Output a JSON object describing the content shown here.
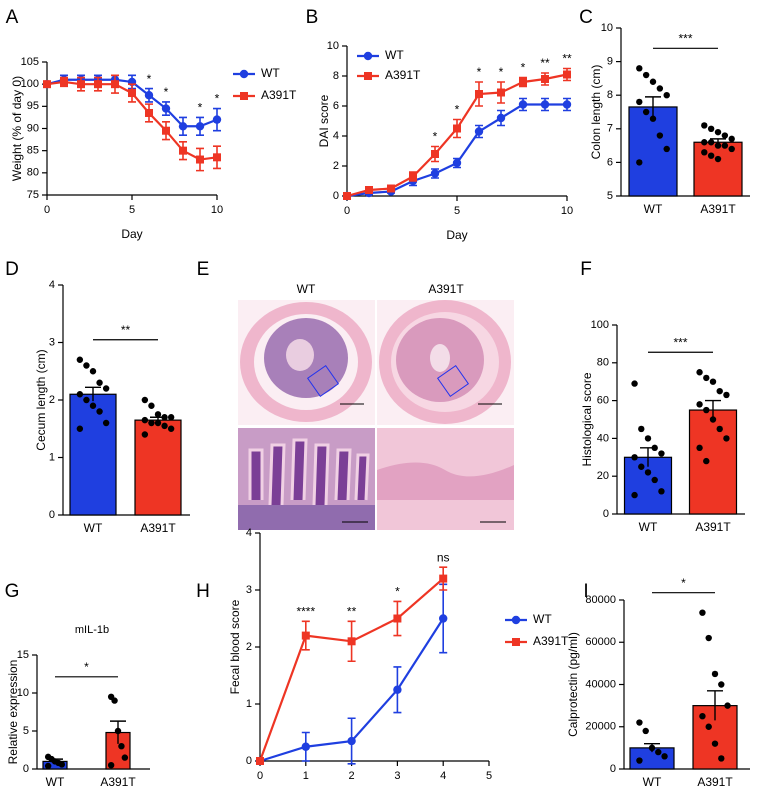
{
  "chart_data": [
    {
      "type": "line",
      "panel": "A",
      "xlabel": "Day",
      "ylabel": "Weight (% of day 0)",
      "x": [
        0,
        1,
        2,
        3,
        4,
        5,
        6,
        7,
        8,
        9,
        10
      ],
      "xlim": [
        0,
        10
      ],
      "xticks": [
        0,
        5,
        10
      ],
      "ylim": [
        75,
        105
      ],
      "yticks": [
        75,
        80,
        85,
        90,
        95,
        100,
        105
      ],
      "legend": "right",
      "series": [
        {
          "name": "WT",
          "color": "#1f3fe0",
          "marker": "circle",
          "values": [
            100,
            101,
            101,
            101,
            101,
            100.5,
            97.5,
            94.5,
            90.5,
            90.5,
            92
          ],
          "errors": [
            0.5,
            1,
            1,
            1,
            1,
            1.5,
            1.5,
            1.5,
            2,
            2,
            2.5
          ]
        },
        {
          "name": "A391T",
          "color": "#ee3524",
          "marker": "square",
          "values": [
            100,
            100.5,
            100,
            100,
            100,
            98,
            93.5,
            89.5,
            85,
            83,
            83.5
          ],
          "errors": [
            0.5,
            1,
            1.5,
            1.5,
            2,
            2,
            2,
            2,
            2,
            2.5,
            2.5
          ]
        }
      ],
      "annotations": [
        {
          "x": 6,
          "text": "*"
        },
        {
          "x": 7,
          "text": "*"
        },
        {
          "x": 9,
          "text": "*"
        },
        {
          "x": 10,
          "text": "*"
        }
      ]
    },
    {
      "type": "line",
      "panel": "B",
      "xlabel": "Day",
      "ylabel": "DAI score",
      "x": [
        0,
        1,
        2,
        3,
        4,
        5,
        6,
        7,
        8,
        9,
        10
      ],
      "xlim": [
        0,
        10
      ],
      "xticks": [
        0,
        5,
        10
      ],
      "ylim": [
        0,
        10
      ],
      "yticks": [
        0,
        2,
        4,
        6,
        8,
        10
      ],
      "legend": "upper left",
      "series": [
        {
          "name": "WT",
          "color": "#1f3fe0",
          "marker": "circle",
          "values": [
            0,
            0.2,
            0.3,
            1.0,
            1.5,
            2.2,
            4.3,
            5.2,
            6.1,
            6.1,
            6.1
          ],
          "errors": [
            0.1,
            0.1,
            0.1,
            0.3,
            0.3,
            0.3,
            0.4,
            0.5,
            0.4,
            0.4,
            0.4
          ]
        },
        {
          "name": "A391T",
          "color": "#ee3524",
          "marker": "square",
          "values": [
            0,
            0.4,
            0.5,
            1.3,
            2.8,
            4.5,
            6.8,
            6.9,
            7.6,
            7.8,
            8.1
          ],
          "errors": [
            0.1,
            0.1,
            0.1,
            0.3,
            0.5,
            0.6,
            0.8,
            0.7,
            0.3,
            0.4,
            0.4
          ]
        }
      ],
      "annotations": [
        {
          "x": 4,
          "text": "*"
        },
        {
          "x": 5,
          "text": "*"
        },
        {
          "x": 6,
          "text": "*"
        },
        {
          "x": 7,
          "text": "*"
        },
        {
          "x": 8,
          "text": "*"
        },
        {
          "x": 9,
          "text": "**"
        },
        {
          "x": 10,
          "text": "**"
        }
      ]
    },
    {
      "type": "bar",
      "panel": "C",
      "ylabel": "Colon length (cm)",
      "categories": [
        "WT",
        "A391T"
      ],
      "values": [
        7.65,
        6.6
      ],
      "errors": [
        0.3,
        0.1
      ],
      "colors": [
        "#1f3fe0",
        "#ee3524"
      ],
      "points": [
        [
          8.8,
          8.6,
          8.4,
          8.2,
          8.0,
          7.8,
          7.5,
          7.3,
          6.8,
          6.4,
          6.0
        ],
        [
          7.1,
          7.0,
          6.9,
          6.8,
          6.7,
          6.6,
          6.6,
          6.5,
          6.5,
          6.4,
          6.3,
          6.2,
          6.1
        ]
      ],
      "ylim": [
        5,
        10
      ],
      "yticks": [
        5,
        6,
        7,
        8,
        9,
        10
      ],
      "significance": "***"
    },
    {
      "type": "bar",
      "panel": "D",
      "ylabel": "Cecum length (cm)",
      "categories": [
        "WT",
        "A391T"
      ],
      "values": [
        2.1,
        1.65
      ],
      "errors": [
        0.12,
        0.05
      ],
      "colors": [
        "#1f3fe0",
        "#ee3524"
      ],
      "points": [
        [
          2.7,
          2.6,
          2.5,
          2.3,
          2.2,
          2.1,
          2.0,
          1.9,
          1.8,
          1.6,
          1.5
        ],
        [
          2.0,
          1.9,
          1.75,
          1.7,
          1.7,
          1.65,
          1.6,
          1.6,
          1.55,
          1.5,
          1.4
        ]
      ],
      "ylim": [
        0,
        4
      ],
      "yticks": [
        0,
        1,
        2,
        3,
        4
      ],
      "significance": "**"
    },
    {
      "type": "image",
      "panel": "E",
      "labels": [
        "WT",
        "A391T"
      ]
    },
    {
      "type": "bar",
      "panel": "F",
      "ylabel": "Histological score",
      "categories": [
        "WT",
        "A391T"
      ],
      "values": [
        30,
        55
      ],
      "errors": [
        5,
        5
      ],
      "colors": [
        "#1f3fe0",
        "#ee3524"
      ],
      "points": [
        [
          69,
          45,
          40,
          35,
          32,
          30,
          25,
          22,
          18,
          12,
          10
        ],
        [
          75,
          72,
          70,
          65,
          63,
          58,
          55,
          50,
          45,
          40,
          35,
          28
        ]
      ],
      "ylim": [
        0,
        100
      ],
      "yticks": [
        0,
        20,
        40,
        60,
        80,
        100
      ],
      "significance": "***"
    },
    {
      "type": "bar",
      "panel": "G",
      "title": "mIL-1b",
      "ylabel": "Relative expression",
      "categories": [
        "WT",
        "A391T"
      ],
      "values": [
        1.0,
        4.8
      ],
      "errors": [
        0.3,
        1.5
      ],
      "colors": [
        "#1f3fe0",
        "#ee3524"
      ],
      "points": [
        [
          1.6,
          1.3,
          1.0,
          0.8,
          0.6,
          0.4
        ],
        [
          9.5,
          9.0,
          5.0,
          3.0,
          1.5,
          0.5
        ]
      ],
      "ylim": [
        0,
        15
      ],
      "yticks": [
        0,
        5,
        10,
        15
      ],
      "significance": "*"
    },
    {
      "type": "line",
      "panel": "H",
      "ylabel": "Fecal blood score",
      "x": [
        0,
        1,
        2,
        3,
        4
      ],
      "xlim": [
        0,
        5
      ],
      "xticks": [
        0,
        1,
        2,
        3,
        4,
        5
      ],
      "ylim": [
        0,
        4
      ],
      "yticks": [
        0,
        1,
        2,
        3,
        4
      ],
      "legend": "right",
      "series": [
        {
          "name": "WT",
          "color": "#1f3fe0",
          "marker": "circle",
          "values": [
            0,
            0.25,
            0.35,
            1.25,
            2.5
          ],
          "errors": [
            0,
            0.25,
            0.4,
            0.4,
            0.6
          ]
        },
        {
          "name": "A391T",
          "color": "#ee3524",
          "marker": "square",
          "values": [
            0,
            2.2,
            2.1,
            2.5,
            3.2
          ],
          "errors": [
            0,
            0.25,
            0.35,
            0.3,
            0.2
          ]
        }
      ],
      "annotations": [
        {
          "x": 1,
          "text": "****"
        },
        {
          "x": 2,
          "text": "**"
        },
        {
          "x": 3,
          "text": "*"
        },
        {
          "x": 4,
          "text": "ns"
        }
      ]
    },
    {
      "type": "bar",
      "panel": "I",
      "ylabel": "Calprotectin (pg/ml)",
      "categories": [
        "WT",
        "A391T"
      ],
      "values": [
        10000,
        30000
      ],
      "errors": [
        2000,
        7000
      ],
      "colors": [
        "#1f3fe0",
        "#ee3524"
      ],
      "points": [
        [
          22000,
          18000,
          10000,
          8000,
          6000,
          4000
        ],
        [
          74000,
          62000,
          45000,
          40000,
          30000,
          25000,
          20000,
          12000,
          5000
        ]
      ],
      "ylim": [
        0,
        80000
      ],
      "yticks": [
        0,
        20000,
        40000,
        60000,
        80000
      ],
      "significance": "*"
    }
  ]
}
